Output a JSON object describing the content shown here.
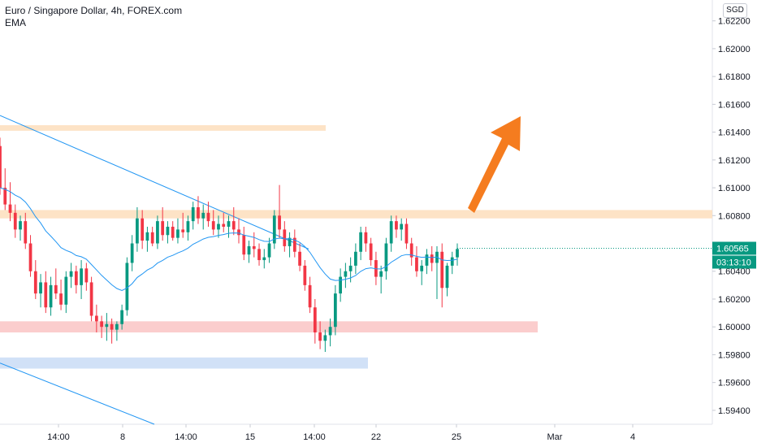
{
  "header": {
    "title": "Euro / Singapore Dollar, 4h, FOREX.com",
    "indicator": "EMA",
    "currency": "SGD"
  },
  "price_labels": {
    "last_price": "1.60565",
    "countdown": "03:13:10",
    "accent": "#089981"
  },
  "chart_data": {
    "type": "candlestick",
    "title": "Euro / Singapore Dollar, 4h, FOREX.com",
    "ylim": [
      1.593,
      1.6235
    ],
    "y_ticks": [
      "1.62200",
      "1.62000",
      "1.61800",
      "1.61600",
      "1.61400",
      "1.61200",
      "1.61000",
      "1.60800",
      "1.60565",
      "1.60400",
      "1.60200",
      "1.60000",
      "1.59800",
      "1.59600",
      "1.59400"
    ],
    "x_ticks": [
      "14:00",
      "8",
      "14:00",
      "15",
      "14:00",
      "22",
      "25",
      "Mar",
      "4"
    ],
    "up_color": "#26a69a",
    "down_color": "#ef5350",
    "candle_colors": {
      "up": "#089981",
      "down": "#f23645"
    },
    "ema_color": "#2196f3",
    "candles": [
      [
        1.613,
        1.6136,
        1.6095,
        1.61
      ],
      [
        1.61,
        1.6114,
        1.6084,
        1.6088
      ],
      [
        1.6088,
        1.6104,
        1.6076,
        1.6082
      ],
      [
        1.6082,
        1.6088,
        1.6064,
        1.607
      ],
      [
        1.607,
        1.608,
        1.6062,
        1.6076
      ],
      [
        1.6076,
        1.6082,
        1.6056,
        1.606
      ],
      [
        1.606,
        1.6066,
        1.6036,
        1.604
      ],
      [
        1.604,
        1.6048,
        1.602,
        1.6024
      ],
      [
        1.6024,
        1.6038,
        1.6014,
        1.6032
      ],
      [
        1.6032,
        1.604,
        1.601,
        1.6014
      ],
      [
        1.6014,
        1.6036,
        1.6008,
        1.603
      ],
      [
        1.603,
        1.6042,
        1.602,
        1.6024
      ],
      [
        1.6024,
        1.6034,
        1.6012,
        1.6016
      ],
      [
        1.6016,
        1.604,
        1.601,
        1.6036
      ],
      [
        1.6036,
        1.6046,
        1.6028,
        1.604
      ],
      [
        1.604,
        1.6044,
        1.6024,
        1.603
      ],
      [
        1.603,
        1.6048,
        1.602,
        1.6042
      ],
      [
        1.6042,
        1.6046,
        1.6026,
        1.6032
      ],
      [
        1.6032,
        1.6036,
        1.6004,
        1.6008
      ],
      [
        1.6008,
        1.6016,
        1.5996,
        1.6004
      ],
      [
        1.6004,
        1.6008,
        1.5992,
        1.6
      ],
      [
        1.6,
        1.601,
        1.599,
        1.6002
      ],
      [
        1.6002,
        1.6006,
        1.5988,
        1.5998
      ],
      [
        1.5998,
        1.6004,
        1.599,
        1.6002
      ],
      [
        1.6002,
        1.6016,
        1.5998,
        1.6012
      ],
      [
        1.6012,
        1.605,
        1.6008,
        1.6046
      ],
      [
        1.6046,
        1.6066,
        1.604,
        1.606
      ],
      [
        1.606,
        1.6086,
        1.6054,
        1.6078
      ],
      [
        1.6078,
        1.6084,
        1.6056,
        1.6062
      ],
      [
        1.6062,
        1.6072,
        1.6054,
        1.6068
      ],
      [
        1.6068,
        1.6072,
        1.6058,
        1.606
      ],
      [
        1.606,
        1.608,
        1.6056,
        1.6076
      ],
      [
        1.6076,
        1.6086,
        1.6062,
        1.6066
      ],
      [
        1.6066,
        1.6076,
        1.606,
        1.6072
      ],
      [
        1.6072,
        1.6076,
        1.6062,
        1.6064
      ],
      [
        1.6064,
        1.6078,
        1.606,
        1.607
      ],
      [
        1.607,
        1.6082,
        1.6064,
        1.6068
      ],
      [
        1.6068,
        1.608,
        1.6062,
        1.6076
      ],
      [
        1.6076,
        1.609,
        1.607,
        1.6086
      ],
      [
        1.6086,
        1.6094,
        1.6074,
        1.6078
      ],
      [
        1.6078,
        1.6088,
        1.607,
        1.6082
      ],
      [
        1.6082,
        1.609,
        1.6072,
        1.6076
      ],
      [
        1.6076,
        1.6084,
        1.6066,
        1.607
      ],
      [
        1.607,
        1.608,
        1.6064,
        1.6074
      ],
      [
        1.6074,
        1.6082,
        1.6068,
        1.6072
      ],
      [
        1.6072,
        1.608,
        1.6064,
        1.6076
      ],
      [
        1.6076,
        1.6086,
        1.6066,
        1.607
      ],
      [
        1.607,
        1.6078,
        1.606,
        1.6066
      ],
      [
        1.6066,
        1.6072,
        1.6048,
        1.6052
      ],
      [
        1.6052,
        1.6062,
        1.6046,
        1.6058
      ],
      [
        1.6058,
        1.6068,
        1.605,
        1.6056
      ],
      [
        1.6056,
        1.606,
        1.6044,
        1.6048
      ],
      [
        1.6048,
        1.6056,
        1.6042,
        1.605
      ],
      [
        1.605,
        1.6064,
        1.6046,
        1.606
      ],
      [
        1.606,
        1.6084,
        1.6056,
        1.608
      ],
      [
        1.608,
        1.6102,
        1.6064,
        1.607
      ],
      [
        1.607,
        1.6076,
        1.6054,
        1.6058
      ],
      [
        1.6058,
        1.6068,
        1.605,
        1.6064
      ],
      [
        1.6064,
        1.607,
        1.605,
        1.6054
      ],
      [
        1.6054,
        1.606,
        1.604,
        1.6044
      ],
      [
        1.6044,
        1.6048,
        1.6026,
        1.603
      ],
      [
        1.603,
        1.6036,
        1.601,
        1.6014
      ],
      [
        1.6014,
        1.602,
        1.5988,
        1.5996
      ],
      [
        1.5996,
        1.6004,
        1.5984,
        1.599
      ],
      [
        1.599,
        1.5998,
        1.5982,
        1.5994
      ],
      [
        1.5994,
        1.6006,
        1.5986,
        1.6
      ],
      [
        1.6,
        1.603,
        1.5994,
        1.6024
      ],
      [
        1.6024,
        1.6042,
        1.6018,
        1.6036
      ],
      [
        1.6036,
        1.6046,
        1.6028,
        1.604
      ],
      [
        1.604,
        1.605,
        1.6032,
        1.6044
      ],
      [
        1.6044,
        1.606,
        1.6038,
        1.6054
      ],
      [
        1.6054,
        1.6072,
        1.6048,
        1.6068
      ],
      [
        1.6068,
        1.6072,
        1.6054,
        1.606
      ],
      [
        1.606,
        1.6064,
        1.6044,
        1.6048
      ],
      [
        1.6048,
        1.6054,
        1.603,
        1.6036
      ],
      [
        1.6036,
        1.6044,
        1.6024,
        1.604
      ],
      [
        1.604,
        1.6064,
        1.6034,
        1.606
      ],
      [
        1.606,
        1.608,
        1.6054,
        1.6076
      ],
      [
        1.6076,
        1.608,
        1.6064,
        1.607
      ],
      [
        1.607,
        1.6078,
        1.6062,
        1.6074
      ],
      [
        1.6074,
        1.6078,
        1.6056,
        1.606
      ],
      [
        1.606,
        1.6064,
        1.6044,
        1.605
      ],
      [
        1.605,
        1.6058,
        1.6036,
        1.604
      ],
      [
        1.604,
        1.6048,
        1.603,
        1.6044
      ],
      [
        1.6044,
        1.6056,
        1.6038,
        1.6052
      ],
      [
        1.6052,
        1.6058,
        1.604,
        1.6046
      ],
      [
        1.6046,
        1.6058,
        1.602,
        1.6054
      ],
      [
        1.6054,
        1.606,
        1.6014,
        1.6028
      ],
      [
        1.6028,
        1.6046,
        1.6022,
        1.6044
      ],
      [
        1.6044,
        1.6054,
        1.6038,
        1.605
      ],
      [
        1.605,
        1.606,
        1.6044,
        1.6056
      ]
    ],
    "zones": [
      {
        "name": "upper-resistance-zone",
        "price_top": 1.6145,
        "price_bottom": 1.6141,
        "end_label": "15",
        "color": "#fde2c3"
      },
      {
        "name": "main-resistance-zone",
        "price_top": 1.6084,
        "price_bottom": 1.6078,
        "end_label": "edge",
        "color": "#fde2c3"
      },
      {
        "name": "support-zone",
        "price_top": 1.6004,
        "price_bottom": 1.5996,
        "end_label": "Mar",
        "color": "#fbcaca"
      },
      {
        "name": "lower-support-zone",
        "price_top": 1.5978,
        "price_bottom": 1.597,
        "end_label": "22",
        "color": "#cfdff7"
      }
    ]
  }
}
